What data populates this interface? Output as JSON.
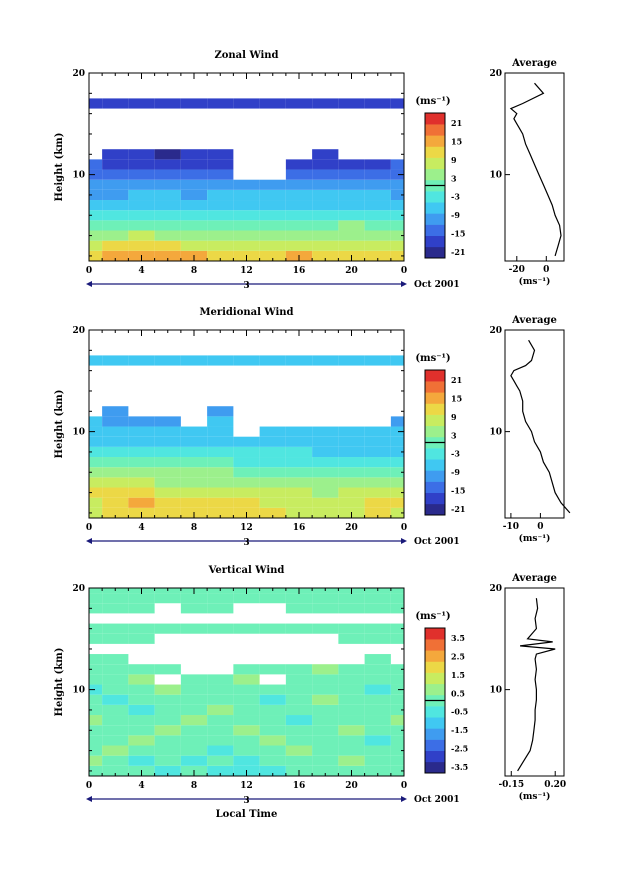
{
  "colorscale": [
    "#2a2a8c",
    "#3040c8",
    "#3c6ee6",
    "#3f9cf0",
    "#40c8f2",
    "#50e6e0",
    "#6ef0b8",
    "#9cf08c",
    "#c8ec60",
    "#ecd846",
    "#f4a83c",
    "#f07036",
    "#e0302c"
  ],
  "panels": [
    {
      "title": "Zonal Wind",
      "ylabel": "Height (km)",
      "xlabel": "",
      "xticks": [
        "0",
        "4",
        "8",
        "12",
        "16",
        "20",
        "0"
      ],
      "day_label": "3",
      "date_label": "Oct 2001",
      "yticks": [
        "20",
        "10"
      ],
      "unit": "(ms⁻¹)",
      "colorbar_labels": [
        "21",
        "15",
        "9",
        "3",
        "-3",
        "-9",
        "-15",
        "-21"
      ],
      "avg_title": "Average",
      "avg_yticks": [
        "20",
        "10"
      ],
      "avg_xticks": [
        "-20",
        "0"
      ],
      "avg_xlabel": "(ms⁻¹)"
    },
    {
      "title": "Meridional Wind",
      "ylabel": "Height (km)",
      "xlabel": "",
      "xticks": [
        "0",
        "4",
        "8",
        "12",
        "16",
        "20",
        "0"
      ],
      "day_label": "3",
      "date_label": "Oct 2001",
      "yticks": [
        "20",
        "10"
      ],
      "unit": "(ms⁻¹)",
      "colorbar_labels": [
        "21",
        "15",
        "9",
        "3",
        "-3",
        "-9",
        "-15",
        "-21"
      ],
      "avg_title": "Average",
      "avg_yticks": [
        "20",
        "10"
      ],
      "avg_xticks": [
        "-10",
        "0"
      ],
      "avg_xlabel": "(ms⁻¹)"
    },
    {
      "title": "Vertical Wind",
      "ylabel": "Height (km)",
      "xlabel": "Local Time",
      "xticks": [
        "0",
        "4",
        "8",
        "12",
        "16",
        "20",
        "0"
      ],
      "day_label": "3",
      "date_label": "Oct 2001",
      "yticks": [
        "20",
        "10"
      ],
      "unit": "(ms⁻¹)",
      "colorbar_labels": [
        "3.5",
        "2.5",
        "1.5",
        "0.5",
        "-0.5",
        "-1.5",
        "-2.5",
        "-3.5"
      ],
      "avg_title": "Average",
      "avg_yticks": [
        "20",
        "10"
      ],
      "avg_xticks": [
        "-0.15",
        "0.20"
      ],
      "avg_xlabel": "(ms⁻¹)"
    }
  ],
  "chart_data": [
    {
      "type": "heatmap",
      "title": "Zonal Wind",
      "xlabel": "",
      "ylabel": "Height (km)",
      "xlim": [
        0,
        24
      ],
      "ylim": [
        1.5,
        20
      ],
      "colorbar_range": [
        -24,
        24
      ],
      "x_hours": [
        0,
        2,
        4,
        6,
        8,
        10,
        12,
        14,
        16,
        18,
        20,
        22,
        24
      ],
      "heights_km": [
        2,
        3,
        4,
        5,
        6,
        7,
        8,
        9,
        10,
        11,
        12,
        13,
        14,
        15,
        16,
        17,
        18
      ],
      "values": [
        [
          12,
          14,
          15,
          14,
          13,
          12,
          12,
          12,
          13,
          12,
          11,
          10,
          10
        ],
        [
          8,
          10,
          11,
          10,
          9,
          9,
          8,
          8,
          9,
          8,
          8,
          7,
          7
        ],
        [
          4,
          5,
          6,
          5,
          5,
          4,
          4,
          4,
          5,
          4,
          4,
          3,
          3
        ],
        [
          -1,
          0,
          1,
          0,
          1,
          0,
          0,
          0,
          1,
          1,
          2,
          1,
          1
        ],
        [
          -5,
          -4,
          -3,
          -4,
          -4,
          -4,
          -4,
          -3,
          -3,
          -3,
          -3,
          -4,
          -4
        ],
        [
          -8,
          -7,
          -6,
          -7,
          -7,
          -7,
          -6,
          -6,
          -6,
          -6,
          -6,
          -7,
          -7
        ],
        [
          -10,
          -10,
          -9,
          -9,
          -10,
          -9,
          -8,
          -8,
          -8,
          -8,
          -9,
          -9,
          -10
        ],
        [
          -12,
          -12,
          -11,
          -12,
          -12,
          -11,
          -10,
          -11,
          -11,
          -11,
          -12,
          -12,
          -12
        ],
        [
          -14,
          -15,
          -14,
          -15,
          -15,
          -14,
          null,
          null,
          -14,
          -14,
          -15,
          -15,
          -14
        ],
        [
          -16,
          -18,
          -17,
          -19,
          -18,
          -17,
          null,
          null,
          -17,
          -17,
          -18,
          -18,
          -16
        ],
        [
          null,
          -20,
          -20,
          -21,
          -20,
          -19,
          null,
          null,
          null,
          -19,
          null,
          null,
          null
        ],
        [
          null,
          null,
          null,
          null,
          null,
          null,
          null,
          null,
          null,
          null,
          null,
          null,
          null
        ],
        [
          null,
          null,
          null,
          null,
          null,
          null,
          null,
          null,
          null,
          null,
          null,
          null,
          null
        ],
        [
          null,
          null,
          null,
          null,
          null,
          null,
          null,
          null,
          null,
          null,
          null,
          null,
          null
        ],
        [
          null,
          null,
          null,
          null,
          null,
          null,
          null,
          null,
          null,
          null,
          null,
          null,
          null
        ],
        [
          -20,
          -20,
          -19,
          -20,
          -20,
          -20,
          -19,
          -20,
          -20,
          -19,
          -20,
          -20,
          -20
        ],
        [
          null,
          null,
          null,
          null,
          null,
          null,
          null,
          null,
          null,
          null,
          null,
          null,
          null
        ]
      ]
    },
    {
      "type": "line",
      "title": "Average",
      "x": [
        6,
        8,
        10,
        9,
        6,
        4,
        1,
        -2,
        -5,
        -8,
        -11,
        -14,
        -16,
        -18,
        -20,
        -22,
        -20,
        -24,
        -16,
        -2,
        -8
      ],
      "y": [
        2,
        3,
        4,
        5,
        6,
        7,
        8,
        9,
        10,
        11,
        12,
        13,
        14,
        14.5,
        15,
        15.5,
        16,
        16.5,
        17,
        18,
        19
      ],
      "xlim": [
        -28,
        12
      ],
      "ylim": [
        1.5,
        20
      ],
      "xlabel": "(ms⁻¹)",
      "ylabel": ""
    },
    {
      "type": "heatmap",
      "title": "Meridional Wind",
      "xlabel": "",
      "ylabel": "Height (km)",
      "xlim": [
        0,
        24
      ],
      "ylim": [
        1.5,
        20
      ],
      "colorbar_range": [
        -24,
        24
      ],
      "x_hours": [
        0,
        2,
        4,
        6,
        8,
        10,
        12,
        14,
        16,
        18,
        20,
        22,
        24
      ],
      "heights_km": [
        2,
        3,
        4,
        5,
        6,
        7,
        8,
        9,
        10,
        11,
        12,
        13,
        14,
        15,
        16,
        17,
        18
      ],
      "values": [
        [
          6,
          10,
          12,
          11,
          11,
          12,
          11,
          10,
          9,
          8,
          9,
          10,
          9
        ],
        [
          9,
          12,
          13,
          12,
          10,
          11,
          10,
          9,
          8,
          8,
          9,
          12,
          11
        ],
        [
          10,
          11,
          10,
          9,
          8,
          8,
          7,
          6,
          6,
          5,
          6,
          7,
          6
        ],
        [
          6,
          7,
          6,
          5,
          5,
          4,
          4,
          3,
          3,
          2,
          3,
          2,
          2
        ],
        [
          3,
          4,
          3,
          3,
          2,
          2,
          1,
          1,
          0,
          0,
          0,
          -1,
          -1
        ],
        [
          0,
          1,
          0,
          0,
          -1,
          -1,
          -2,
          -2,
          -3,
          -3,
          -3,
          -4,
          -4
        ],
        [
          -3,
          -3,
          -3,
          -4,
          -4,
          -4,
          -5,
          -5,
          -5,
          -6,
          -6,
          -6,
          -6
        ],
        [
          -6,
          -6,
          -6,
          -6,
          -7,
          -7,
          -7,
          -7,
          -7,
          -8,
          -8,
          -8,
          -8
        ],
        [
          -8,
          -8,
          -9,
          -9,
          -9,
          -8,
          null,
          -9,
          -9,
          -9,
          -9,
          -9,
          -9
        ],
        [
          -9,
          -10,
          -10,
          -10,
          null,
          -9,
          null,
          null,
          null,
          null,
          null,
          null,
          -10
        ],
        [
          null,
          -10,
          null,
          null,
          null,
          -10,
          null,
          null,
          null,
          null,
          null,
          null,
          null
        ],
        [
          null,
          null,
          null,
          null,
          null,
          null,
          null,
          null,
          null,
          null,
          null,
          null,
          null
        ],
        [
          null,
          null,
          null,
          null,
          null,
          null,
          null,
          null,
          null,
          null,
          null,
          null,
          null
        ],
        [
          null,
          null,
          null,
          null,
          null,
          null,
          null,
          null,
          null,
          null,
          null,
          null,
          null
        ],
        [
          null,
          null,
          null,
          null,
          null,
          null,
          null,
          null,
          null,
          null,
          null,
          null,
          null
        ],
        [
          -8,
          -8,
          -7,
          -8,
          -8,
          -8,
          -8,
          -8,
          -8,
          -8,
          -8,
          -8,
          -8
        ],
        [
          null,
          null,
          null,
          null,
          null,
          null,
          null,
          null,
          null,
          null,
          null,
          null,
          null
        ]
      ]
    },
    {
      "type": "line",
      "title": "Average",
      "x": [
        10,
        7,
        5,
        4,
        3,
        1,
        0,
        -2,
        -3,
        -5,
        -6,
        -6,
        -7,
        -8,
        -9,
        -10,
        -9,
        -5,
        -3,
        -2,
        -4
      ],
      "y": [
        2,
        3,
        4,
        5,
        6,
        7,
        8,
        9,
        10,
        11,
        12,
        13,
        14,
        14.5,
        15,
        15.5,
        16,
        16.5,
        17,
        18,
        19
      ],
      "xlim": [
        -12,
        8
      ],
      "ylim": [
        1.5,
        20
      ],
      "xlabel": "(ms⁻¹)",
      "ylabel": ""
    },
    {
      "type": "heatmap",
      "title": "Vertical Wind",
      "xlabel": "Local Time",
      "ylabel": "Height (km)",
      "xlim": [
        0,
        24
      ],
      "ylim": [
        1.5,
        20
      ],
      "colorbar_range": [
        -4,
        4
      ],
      "x_hours": [
        0,
        2,
        4,
        6,
        8,
        10,
        12,
        14,
        16,
        18,
        20,
        22,
        24
      ],
      "heights_km": [
        2,
        3,
        4,
        5,
        6,
        7,
        8,
        9,
        10,
        11,
        12,
        13,
        14,
        15,
        16,
        17,
        18,
        19,
        20
      ],
      "values": [
        [
          0.2,
          -0.3,
          0.1,
          -0.4,
          -0.2,
          -0.6,
          -0.8,
          -0.5,
          -0.3,
          0.2,
          -0.1,
          0.3,
          0.1
        ],
        [
          0.4,
          0.1,
          -0.4,
          0.2,
          -0.5,
          -0.3,
          -0.6,
          0.1,
          0.3,
          -0.2,
          0.4,
          -0.3,
          0.2
        ],
        [
          -0.3,
          0.5,
          0.2,
          -0.2,
          0.3,
          -0.4,
          0.2,
          -0.3,
          0.4,
          0.1,
          -0.3,
          0.2,
          -0.1
        ],
        [
          0.3,
          -0.2,
          0.4,
          -0.3,
          0.2,
          0.3,
          -0.2,
          0.4,
          -0.3,
          0.3,
          0.2,
          -0.4,
          0.3
        ],
        [
          -0.2,
          0.3,
          -0.3,
          0.4,
          -0.2,
          0.2,
          0.4,
          -0.2,
          0.3,
          -0.3,
          0.4,
          0.2,
          -0.2
        ],
        [
          0.4,
          -0.3,
          0.3,
          -0.2,
          0.5,
          -0.3,
          0.2,
          0.3,
          -0.4,
          0.2,
          -0.2,
          0.3,
          0.4
        ],
        [
          -0.3,
          0.2,
          -0.4,
          0.3,
          -0.2,
          0.4,
          -0.3,
          0.2,
          0.3,
          -0.3,
          0.3,
          -0.2,
          0.2
        ],
        [
          0.2,
          -0.4,
          0.3,
          -0.3,
          0.3,
          -0.2,
          0.3,
          -0.4,
          0.2,
          0.4,
          -0.3,
          0.3,
          -0.3
        ],
        [
          -0.4,
          0.3,
          -0.2,
          0.4,
          -0.3,
          0.3,
          -0.2,
          0.3,
          -0.3,
          0.2,
          0.3,
          -0.4,
          0.2
        ],
        [
          0.3,
          -0.2,
          0.4,
          null,
          0.2,
          -0.3,
          0.4,
          null,
          0.3,
          -0.2,
          0.2,
          0.3,
          -0.3
        ],
        [
          -0.2,
          0.3,
          -0.3,
          0.2,
          null,
          null,
          -0.2,
          0.3,
          -0.3,
          0.4,
          -0.3,
          0.2,
          0.3
        ],
        [
          0.2,
          -0.3,
          null,
          null,
          null,
          null,
          null,
          null,
          null,
          null,
          null,
          -0.2,
          null
        ],
        [
          null,
          null,
          null,
          null,
          null,
          null,
          null,
          null,
          null,
          null,
          null,
          null,
          null
        ],
        [
          -0.3,
          0.2,
          -0.2,
          null,
          null,
          null,
          null,
          null,
          null,
          null,
          0.2,
          -0.3,
          0.2
        ],
        [
          0.3,
          -0.3,
          0.2,
          -0.2,
          0.3,
          0.2,
          -0.3,
          0.2,
          -0.2,
          0.3,
          -0.2,
          0.3,
          -0.2
        ],
        [
          null,
          null,
          null,
          null,
          null,
          null,
          null,
          null,
          null,
          null,
          null,
          null,
          null
        ],
        [
          -0.2,
          0.3,
          -0.3,
          null,
          0.2,
          -0.3,
          null,
          null,
          0.3,
          -0.2,
          0.3,
          -0.3,
          0.2
        ],
        [
          0.3,
          -0.2,
          0.2,
          -0.3,
          0.3,
          -0.2,
          0.3,
          0.2,
          -0.3,
          0.2,
          -0.3,
          0.2,
          -0.3
        ],
        [
          -0.3,
          0.2,
          -0.3,
          0.2,
          -0.2,
          0.3,
          -0.2,
          0.3,
          0.2,
          -0.3,
          0.2,
          -0.2,
          0.3
        ]
      ]
    },
    {
      "type": "line",
      "title": "Average",
      "x": [
        -0.1,
        -0.05,
        0.0,
        0.02,
        0.03,
        0.04,
        0.04,
        0.05,
        0.05,
        0.04,
        0.05,
        0.04,
        0.05,
        0.2,
        -0.08,
        0.18,
        -0.02,
        0.05,
        0.04,
        0.06,
        0.05
      ],
      "y": [
        2,
        3,
        4,
        5,
        6,
        7,
        8,
        9,
        10,
        11,
        12,
        13,
        13.5,
        14,
        14.3,
        14.7,
        15,
        16,
        17,
        18,
        19
      ],
      "xlim": [
        -0.2,
        0.27
      ],
      "ylim": [
        1.5,
        20
      ],
      "xlabel": "(ms⁻¹)",
      "ylabel": ""
    }
  ]
}
